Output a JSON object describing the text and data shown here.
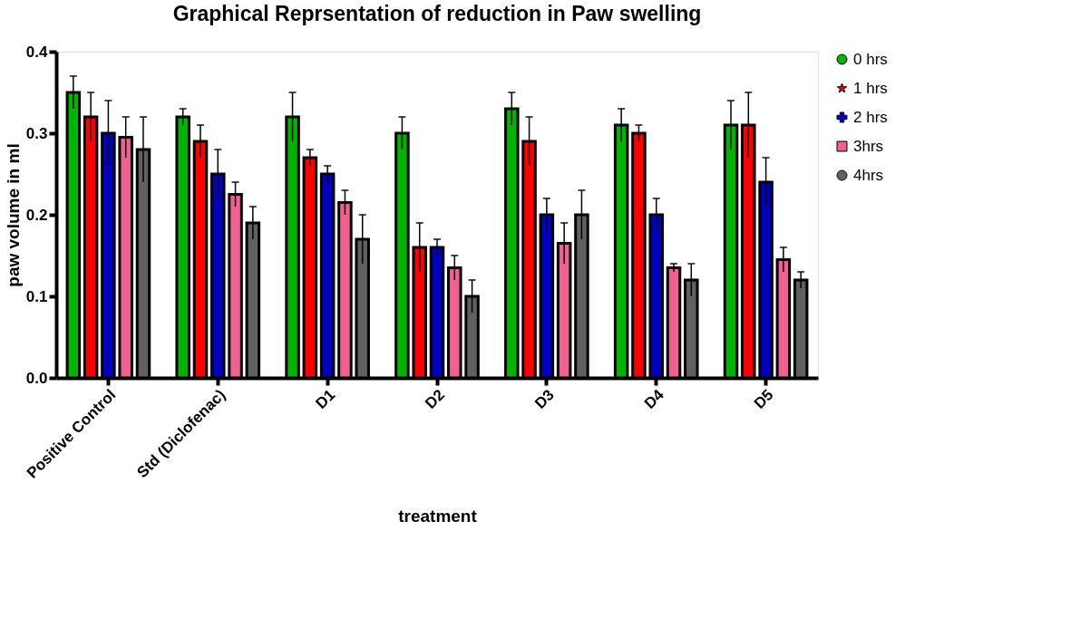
{
  "chart_data": {
    "type": "bar",
    "title": "Graphical Reprsentation of reduction in Paw swelling",
    "xlabel": "treatment",
    "ylabel": "paw volume in ml",
    "categories": [
      "Positive Control",
      "Std (Diclofenac)",
      "D1",
      "D2",
      "D3",
      "D4",
      "D5"
    ],
    "series": [
      {
        "name": "0 hrs",
        "color": "#00b400",
        "marker": "circle",
        "values": [
          0.35,
          0.32,
          0.32,
          0.3,
          0.33,
          0.31,
          0.31
        ],
        "errors": [
          0.02,
          0.01,
          0.03,
          0.02,
          0.02,
          0.02,
          0.03
        ]
      },
      {
        "name": "1 hrs",
        "color": "#ff0000",
        "marker": "star",
        "values": [
          0.32,
          0.29,
          0.27,
          0.16,
          0.29,
          0.3,
          0.31
        ],
        "errors": [
          0.03,
          0.02,
          0.01,
          0.03,
          0.03,
          0.01,
          0.04
        ]
      },
      {
        "name": "2 hrs",
        "color": "#0000c0",
        "marker": "cross",
        "values": [
          0.3,
          0.25,
          0.25,
          0.16,
          0.2,
          0.2,
          0.24
        ],
        "errors": [
          0.04,
          0.03,
          0.01,
          0.01,
          0.02,
          0.02,
          0.03
        ]
      },
      {
        "name": "3hrs",
        "color": "#f06090",
        "marker": "square",
        "values": [
          0.295,
          0.225,
          0.215,
          0.135,
          0.165,
          0.135,
          0.145
        ],
        "errors": [
          0.025,
          0.015,
          0.015,
          0.015,
          0.025,
          0.005,
          0.015
        ]
      },
      {
        "name": "4hrs",
        "color": "#606060",
        "marker": "circle",
        "values": [
          0.28,
          0.19,
          0.17,
          0.1,
          0.2,
          0.12,
          0.12
        ],
        "errors": [
          0.04,
          0.02,
          0.03,
          0.02,
          0.03,
          0.02,
          0.01
        ]
      }
    ],
    "ylim": [
      0,
      0.4
    ],
    "yticks": [
      {
        "value": 0,
        "label": "0.0"
      },
      0.1,
      0.2,
      0.3,
      0.4
    ],
    "grid": false,
    "legend": "right"
  }
}
